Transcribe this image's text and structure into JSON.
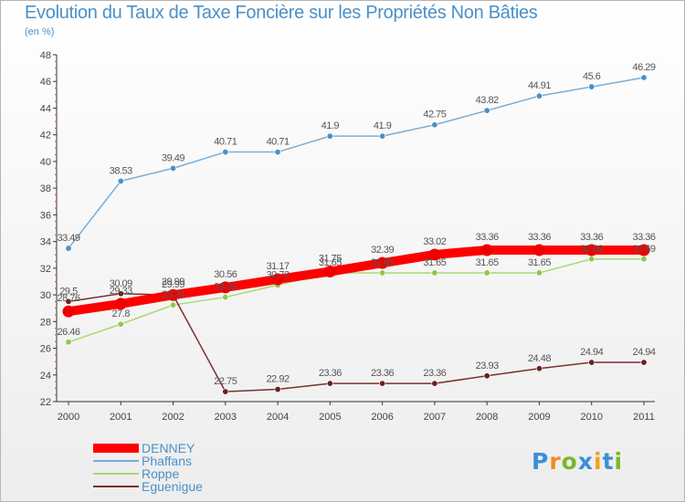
{
  "chart_data": {
    "type": "line",
    "title": "Evolution du Taux de Taxe Foncière sur les Propriétés Non Bâties",
    "unit_label": "(en %)",
    "x": [
      "2000",
      "2001",
      "2002",
      "2003",
      "2004",
      "2005",
      "2006",
      "2007",
      "2008",
      "2009",
      "2010",
      "2011"
    ],
    "ylim": [
      22,
      48
    ],
    "yticks": [
      22,
      24,
      26,
      28,
      30,
      32,
      34,
      36,
      38,
      40,
      42,
      44,
      46,
      48
    ],
    "legend_position": "bottom-left",
    "series": [
      {
        "name": "Phaffans",
        "color": "#7aaed8",
        "marker": "#4a90c8",
        "values": [
          33.49,
          38.53,
          39.49,
          40.71,
          40.71,
          41.9,
          41.9,
          42.75,
          43.82,
          44.91,
          45.6,
          46.29
        ],
        "labels": [
          "33.49",
          "38.53",
          "39.49",
          "40.71",
          "40.71",
          "41.9",
          "41.9",
          "42.75",
          "43.82",
          "44.91",
          "45.6",
          "46.29"
        ]
      },
      {
        "name": "Roppe",
        "color": "#a8d870",
        "marker": "#8cc84a",
        "values": [
          26.46,
          27.8,
          29.24,
          29.83,
          30.73,
          31.65,
          31.65,
          31.65,
          31.65,
          31.65,
          32.69,
          32.69
        ],
        "labels": [
          "26.46",
          "27.8",
          "29.24",
          "29.83",
          "30.73",
          "31.65",
          "31.65",
          "31.65",
          "31.65",
          "31.65",
          "32.69",
          "32.69"
        ]
      },
      {
        "name": "Eguenigue",
        "color": "#7a3030",
        "marker": "#6a2020",
        "values": [
          29.5,
          30.09,
          29.99,
          22.75,
          22.92,
          23.36,
          23.36,
          23.36,
          23.93,
          24.48,
          24.94,
          24.94
        ],
        "labels": [
          "29.5",
          "30.09",
          "29.99",
          "22.75",
          "22.92",
          "23.36",
          "23.36",
          "23.36",
          "23.93",
          "24.48",
          "24.94",
          "24.94"
        ]
      },
      {
        "name": "DENNEY",
        "color": "#ff0000",
        "marker": "#ee0000",
        "values": [
          28.76,
          29.33,
          29.99,
          30.56,
          31.17,
          31.75,
          32.39,
          33.02,
          33.36,
          33.36,
          33.36,
          33.36
        ],
        "labels": [
          "28.76",
          "29.33",
          "29.99",
          "30.56",
          "31.17",
          "31.75",
          "32.39",
          "33.02",
          "33.36",
          "33.36",
          "33.36",
          "33.36"
        ]
      }
    ],
    "legend": [
      "DENNEY",
      "Phaffans",
      "Roppe",
      "Eguenigue"
    ]
  },
  "logo": {
    "text": "Proxiti",
    "letters": [
      "P",
      "r",
      "o",
      "x",
      "i",
      "t",
      "i"
    ],
    "colors": [
      "#3a8fd8",
      "#f08a20",
      "#7ab828",
      "#3a8fd8",
      "#f0a020",
      "#3a8fd8",
      "#7ab828"
    ]
  }
}
